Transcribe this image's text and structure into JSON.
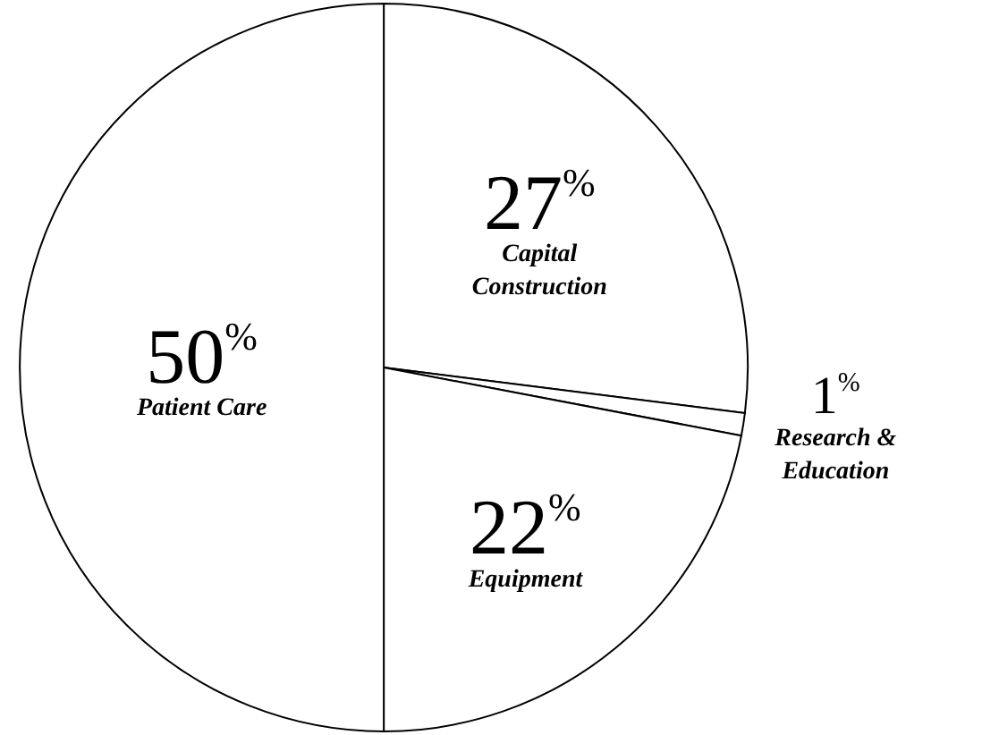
{
  "chart_data": {
    "type": "pie",
    "categories": [
      "Capital Construction",
      "Research & Education",
      "Equipment",
      "Patient Care"
    ],
    "values": [
      27,
      1,
      22,
      50
    ],
    "colors": [
      "#ffffff",
      "#ffffff",
      "#ffffff",
      "#ffffff"
    ],
    "value_labels": [
      "27$^{%}$",
      "1$^{%}$",
      "22$^{%}$",
      "50$^{%}$"
    ],
    "legend": false
  }
}
